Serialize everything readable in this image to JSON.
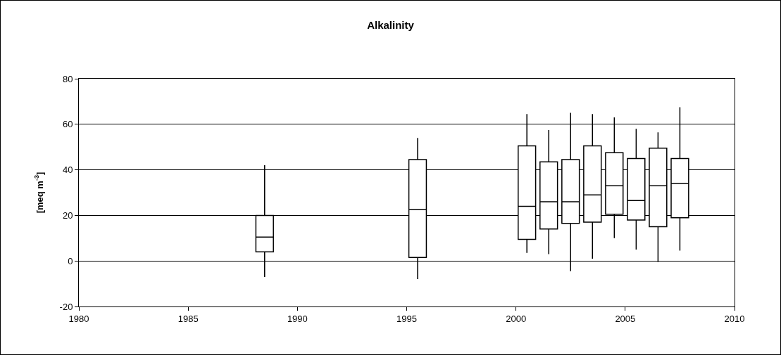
{
  "chart_data": {
    "type": "box",
    "title": "Alkalinity",
    "ylabel": "[meq m$^{-3}$]",
    "x": [
      1988.5,
      1995.5,
      2000.5,
      2001.5,
      2002.5,
      2003.5,
      2004.5,
      2005.5,
      2006.5,
      2007.5
    ],
    "boxes": [
      {
        "low": -7,
        "q1": 4,
        "median": 10.5,
        "q3": 20,
        "high": 42
      },
      {
        "low": -8,
        "q1": 1.5,
        "median": 22.5,
        "q3": 44.5,
        "high": 54
      },
      {
        "low": 3.5,
        "q1": 9.5,
        "median": 24,
        "q3": 50.5,
        "high": 64.5
      },
      {
        "low": 3,
        "q1": 14,
        "median": 26,
        "q3": 43.5,
        "high": 57.5
      },
      {
        "low": -4.5,
        "q1": 16.5,
        "median": 26,
        "q3": 44.5,
        "high": 65
      },
      {
        "low": 1,
        "q1": 17,
        "median": 29,
        "q3": 50.5,
        "high": 64.5
      },
      {
        "low": 10,
        "q1": 20.5,
        "median": 33,
        "q3": 47.5,
        "high": 63
      },
      {
        "low": 5,
        "q1": 18,
        "median": 26.5,
        "q3": 45,
        "high": 58
      },
      {
        "low": -0.5,
        "q1": 15,
        "median": 33,
        "q3": 49.5,
        "high": 56.5
      },
      {
        "low": 4.5,
        "q1": 19,
        "median": 34,
        "q3": 45,
        "high": 67.5
      }
    ],
    "color": "#000000",
    "xlim": [
      1980,
      2010
    ],
    "xticks": [
      1980,
      1985,
      1990,
      1995,
      2000,
      2005,
      2010
    ],
    "ylim": [
      -20,
      80
    ],
    "yticks": [
      -20,
      0,
      20,
      40,
      60,
      80
    ],
    "grid": "y"
  }
}
